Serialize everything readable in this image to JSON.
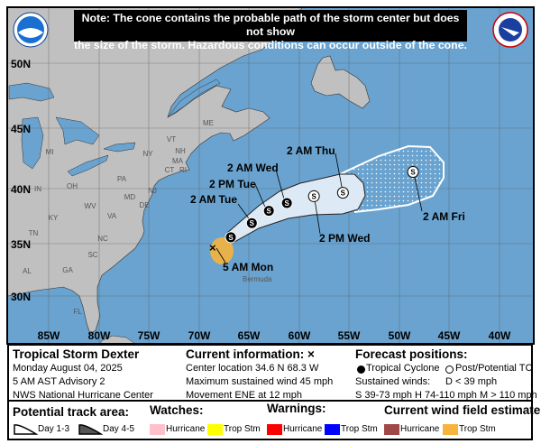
{
  "note": {
    "line1": "Note: The cone contains the probable path of the storm center but does not show",
    "line2": "the size of the storm. Hazardous conditions can occur outside of the cone."
  },
  "logos": {
    "left": "NOAA",
    "right": "NATIONAL WEATHER SERVICE"
  },
  "colors": {
    "ocean": "#6aa3cf",
    "land": "#c0c0c0",
    "cone": "#dde9f5",
    "wind_trop_stm": "#f5b43c",
    "wind_hurricane": "#a04848",
    "watch_hurricane": "#ffc0cb",
    "watch_trop_stm": "#ffff00",
    "warning_hurricane": "#ff0000",
    "warning_trop_stm": "#0000ff"
  },
  "map": {
    "lat_labels": [
      "50N",
      "45N",
      "40N",
      "35N",
      "30N"
    ],
    "lon_labels": [
      "85W",
      "80W",
      "75W",
      "70W",
      "65W",
      "60W",
      "55W",
      "50W",
      "45W",
      "40W"
    ],
    "states": [
      "MI",
      "NY",
      "VT",
      "NH",
      "ME",
      "MA",
      "CT",
      "RI",
      "PA",
      "OH",
      "IN",
      "WV",
      "VA",
      "KY",
      "TN",
      "NC",
      "SC",
      "GA",
      "AL",
      "FL",
      "NJ",
      "MD",
      "DE"
    ],
    "place": "Bermuda",
    "current_position": {
      "label": "5 AM Mon",
      "lat": 34.6,
      "lon": -68.3,
      "icon": "x-mark-icon"
    },
    "forecast_points": [
      {
        "label": "",
        "lat": 35.6,
        "lon": -66.8,
        "intensity": "S",
        "type": "tropical-cyclone"
      },
      {
        "label": "2 AM Tue",
        "lat": 36.9,
        "lon": -64.7,
        "intensity": "S",
        "type": "tropical-cyclone"
      },
      {
        "label": "2 PM Tue",
        "lat": 38.0,
        "lon": -63.0,
        "intensity": "S",
        "type": "tropical-cyclone"
      },
      {
        "label": "2 AM Wed",
        "lat": 38.7,
        "lon": -61.2,
        "intensity": "S",
        "type": "tropical-cyclone"
      },
      {
        "label": "2 PM Wed",
        "lat": 39.3,
        "lon": -58.5,
        "intensity": "S",
        "type": "post-potential"
      },
      {
        "label": "2 AM Thu",
        "lat": 39.6,
        "lon": -55.6,
        "intensity": "S",
        "type": "post-potential"
      },
      {
        "label": "2 AM Fri",
        "lat": 41.4,
        "lon": -48.6,
        "intensity": "S",
        "type": "post-potential"
      }
    ]
  },
  "info": {
    "storm_name": "Tropical Storm Dexter",
    "date": "Monday August 04, 2025",
    "advisory": "5 AM AST Advisory 2",
    "center": "NWS National Hurricane Center",
    "current_title": "Current information: ×",
    "location": "Center location 34.6 N 68.3 W",
    "max_wind": "Maximum sustained wind 45 mph",
    "movement": "Movement ENE at 12 mph",
    "forecast_title": "Forecast positions:",
    "tc_label": "Tropical Cyclone",
    "ptc_label": "Post/Potential TC",
    "sustained": "Sustained winds:",
    "d_range": "D < 39 mph",
    "scale": "S 39-73 mph  H 74-110 mph  M > 110 mph"
  },
  "legend": {
    "track_title": "Potential track area:",
    "day13": "Day 1-3",
    "day45": "Day 4-5",
    "watches_title": "Watches:",
    "warnings_title": "Warnings:",
    "wind_title": "Current wind field estimate:",
    "hurricane": "Hurricane",
    "trop_stm": "Trop Stm"
  }
}
